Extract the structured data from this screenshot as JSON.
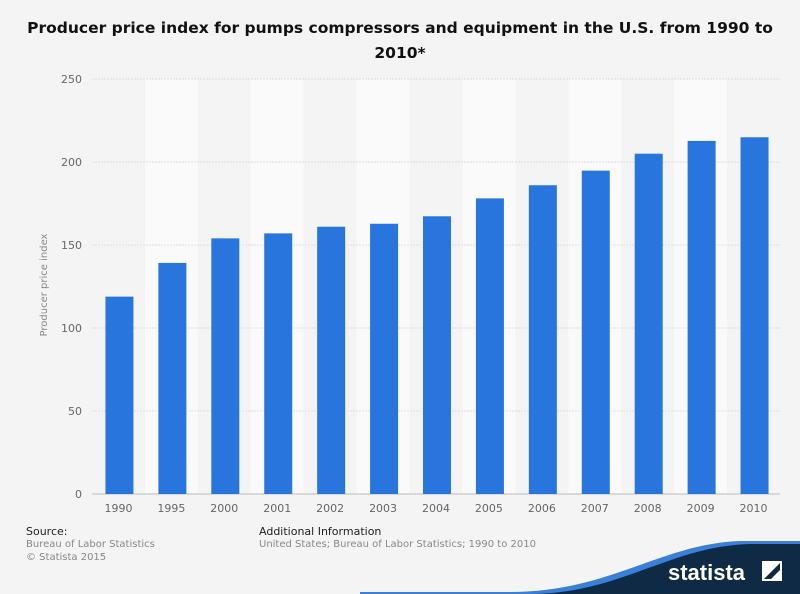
{
  "chart_data": {
    "type": "bar",
    "title": "Producer price index for pumps compressors and equipment in the U.S. from 1990 to 2010*",
    "xlabel": "",
    "ylabel": "Producer price index",
    "categories": [
      "1990",
      "1995",
      "2000",
      "2001",
      "2002",
      "2003",
      "2004",
      "2005",
      "2006",
      "2007",
      "2008",
      "2009",
      "2010"
    ],
    "values": [
      118.9,
      139.2,
      154.0,
      157.0,
      161.0,
      162.8,
      167.3,
      178.1,
      186.0,
      194.8,
      205.0,
      212.7,
      214.9
    ],
    "ylim": [
      0,
      250
    ],
    "yticks": [
      0,
      50,
      100,
      150,
      200,
      250
    ],
    "grid": true,
    "bar_color": "#2876dd"
  },
  "footer": {
    "source_label": "Source:",
    "source": "Bureau of Labor Statistics",
    "copyright": "© Statista 2015",
    "info_label": "Additional Information",
    "info": "United States; Bureau of Labor Statistics; 1990 to 2010"
  },
  "logo": "statista"
}
